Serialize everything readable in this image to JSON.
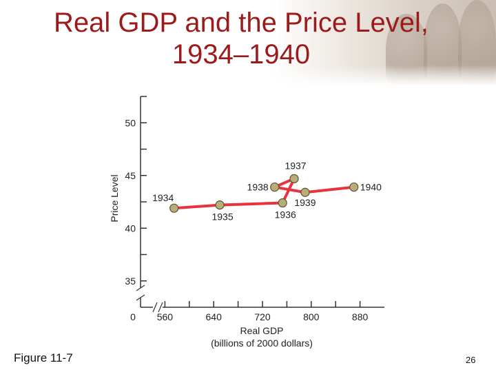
{
  "slide": {
    "title_line1": "Real GDP and the Price Level,",
    "title_line2": "1934–1940",
    "figure_label": "Figure 11-7",
    "page_number": "26",
    "title_color": "#9b1b1b"
  },
  "chart_data": {
    "type": "line",
    "title": "",
    "xlabel": "Real GDP",
    "xlabel_sub": "(billions of 2000 dollars)",
    "ylabel": "Price Level",
    "x_ticks": [
      560,
      640,
      720,
      800,
      880
    ],
    "x_tick_labels": [
      "560",
      "640",
      "720",
      "800",
      "880"
    ],
    "y_ticks": [
      35,
      40,
      45,
      50
    ],
    "y_tick_labels": [
      "35",
      "40",
      "45",
      "50"
    ],
    "origin_label": "0",
    "axis_breaks": true,
    "xlim": [
      520,
      920
    ],
    "ylim": [
      32.5,
      52.5
    ],
    "grid": false,
    "line_color": "#e8323c",
    "marker_color": "#b8ad78",
    "series": [
      {
        "points": [
          {
            "label": "1934",
            "x": 575,
            "y": 41.9
          },
          {
            "label": "1935",
            "x": 650,
            "y": 42.2
          },
          {
            "label": "1936",
            "x": 753,
            "y": 42.4
          },
          {
            "label": "1937",
            "x": 772,
            "y": 44.7
          },
          {
            "label": "1938",
            "x": 740,
            "y": 43.9
          },
          {
            "label": "1939",
            "x": 790,
            "y": 43.4
          },
          {
            "label": "1940",
            "x": 870,
            "y": 43.9
          }
        ]
      }
    ]
  }
}
